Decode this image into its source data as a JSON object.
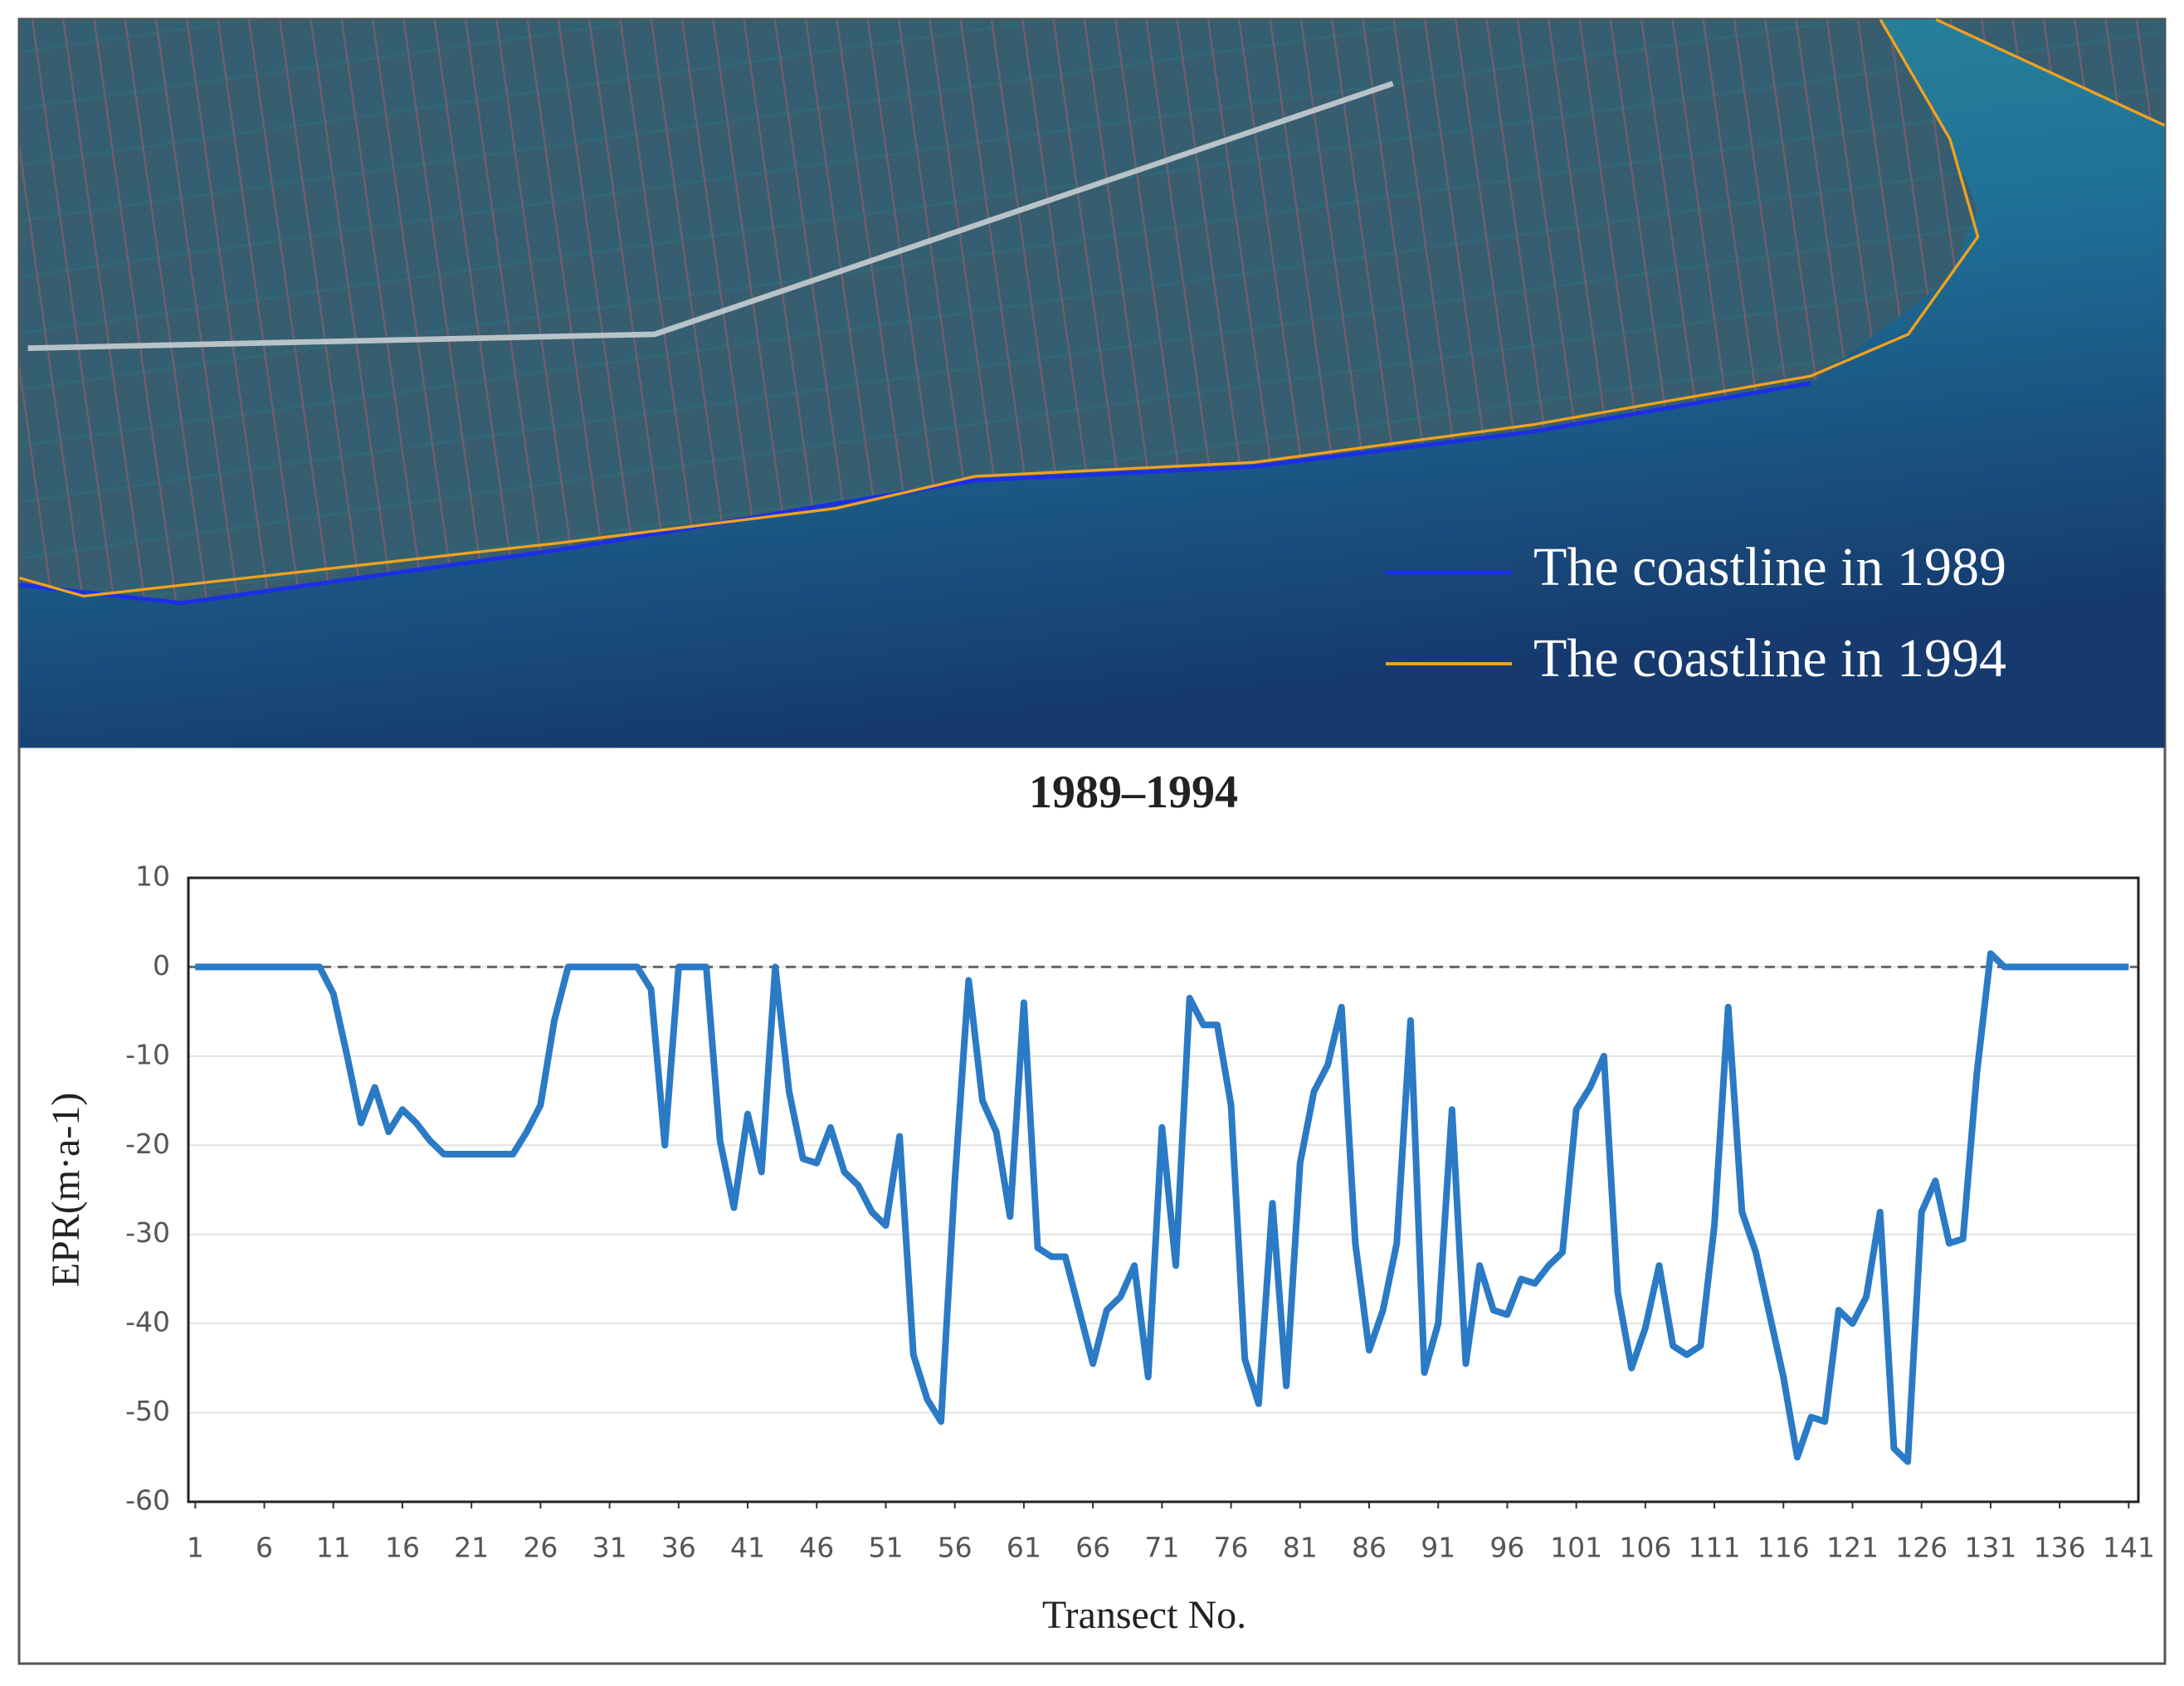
{
  "image_legend": [
    {
      "label": "The coastline in 1989",
      "color": "#1c2ee6"
    },
    {
      "label": "The coastline in 1994",
      "color": "#f0a21e"
    }
  ],
  "chart_data": {
    "type": "line",
    "title": "1989–1994",
    "xlabel": "Transect No.",
    "ylabel": "EPR(m·a-1)",
    "color": "#2a7ac6",
    "grid": true,
    "zero_line": true,
    "xlim": [
      0.5,
      141.7
    ],
    "xticks": [
      1,
      6,
      11,
      16,
      21,
      26,
      31,
      36,
      41,
      46,
      51,
      56,
      61,
      66,
      71,
      76,
      81,
      86,
      91,
      96,
      101,
      106,
      111,
      116,
      121,
      126,
      131,
      136,
      141
    ],
    "ylim": [
      -60,
      10
    ],
    "yticks": [
      10,
      0,
      -10,
      -20,
      -30,
      -40,
      -50,
      -60
    ],
    "x": [
      1,
      2,
      3,
      4,
      5,
      6,
      7,
      8,
      9,
      10,
      11,
      12,
      13,
      14,
      15,
      16,
      17,
      18,
      19,
      20,
      21,
      22,
      23,
      24,
      25,
      26,
      27,
      28,
      29,
      30,
      31,
      32,
      33,
      34,
      35,
      36,
      37,
      38,
      39,
      40,
      41,
      42,
      43,
      44,
      45,
      46,
      47,
      48,
      49,
      50,
      51,
      52,
      53,
      54,
      55,
      56,
      57,
      58,
      59,
      60,
      61,
      62,
      63,
      64,
      65,
      66,
      67,
      68,
      69,
      70,
      71,
      72,
      73,
      74,
      75,
      76,
      77,
      78,
      79,
      80,
      81,
      82,
      83,
      84,
      85,
      86,
      87,
      88,
      89,
      90,
      91,
      92,
      93,
      94,
      95,
      96,
      97,
      98,
      99,
      100,
      101,
      102,
      103,
      104,
      105,
      106,
      107,
      108,
      109,
      110,
      111,
      112,
      113,
      114,
      115,
      116,
      117,
      118,
      119,
      120,
      121,
      122,
      123,
      124,
      125,
      126,
      127,
      128,
      129,
      130,
      131,
      132,
      133,
      134,
      135,
      136,
      137,
      138,
      139,
      140,
      141
    ],
    "values": [
      0,
      0,
      0,
      0,
      0,
      0,
      0,
      0,
      0,
      0,
      -3,
      -10,
      -17.5,
      -13.5,
      -18.5,
      -16,
      -17.5,
      -19.5,
      -21,
      -21,
      -21,
      -21,
      -21,
      -21,
      -18.5,
      -15.5,
      -6,
      0,
      0,
      0,
      0,
      0,
      0,
      -2.5,
      -20,
      0,
      0,
      0,
      -19.5,
      -27,
      -16.5,
      -23,
      0,
      -14,
      -21.5,
      -22,
      -18,
      -23,
      -24.5,
      -27.5,
      -29,
      -19,
      -43.5,
      -48.5,
      -51,
      -24,
      -1.5,
      -15,
      -18.5,
      -28,
      -4,
      -31.5,
      -32.5,
      -32.5,
      -38.5,
      -44.5,
      -38.5,
      -37,
      -33.5,
      -46,
      -18,
      -33.5,
      -3.5,
      -6.5,
      -6.5,
      -15.5,
      -44,
      -49,
      -26.5,
      -47,
      -22,
      -14,
      -11,
      -4.5,
      -31,
      -43,
      -38.5,
      -31,
      -6,
      -45.5,
      -40,
      -16,
      -44.5,
      -33.5,
      -38.5,
      -39,
      -35,
      -35.5,
      -33.5,
      -32,
      -16,
      -13.5,
      -10,
      -36.5,
      -45,
      -40.5,
      -33.5,
      -42.5,
      -43.5,
      -42.5,
      -29,
      -4.5,
      -27.5,
      -32,
      -39,
      -46,
      -55,
      -50.5,
      -51,
      -38.5,
      -40,
      -37,
      -27.5,
      -54,
      -55.5,
      -27.5,
      -24,
      -31,
      -30.5,
      -12,
      1.5,
      0,
      0,
      0,
      0,
      0,
      0,
      0,
      0,
      0,
      0
    ]
  }
}
